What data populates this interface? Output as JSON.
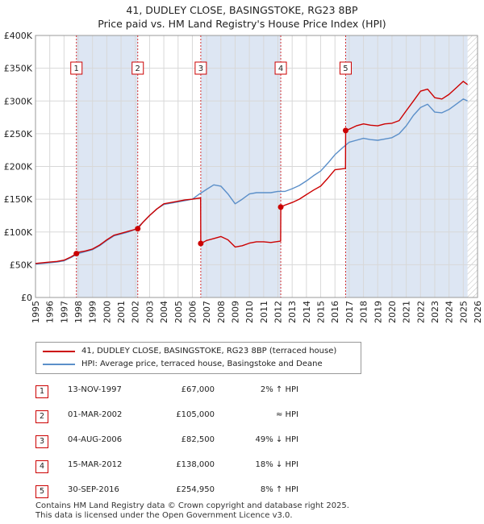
{
  "title_line1": "41, DUDLEY CLOSE, BASINGSTOKE, RG23 8BP",
  "title_line2": "Price paid vs. HM Land Registry's House Price Index (HPI)",
  "legend": {
    "property_label": "41, DUDLEY CLOSE, BASINGSTOKE, RG23 8BP (terraced house)",
    "hpi_label": "HPI: Average price, terraced house, Basingstoke and Deane"
  },
  "sales": [
    {
      "num": "1",
      "date": "13-NOV-1997",
      "price": "£67,000",
      "hpi": "2% ↑ HPI"
    },
    {
      "num": "2",
      "date": "01-MAR-2002",
      "price": "£105,000",
      "hpi": "≈ HPI"
    },
    {
      "num": "3",
      "date": "04-AUG-2006",
      "price": "£82,500",
      "hpi": "49% ↓ HPI"
    },
    {
      "num": "4",
      "date": "15-MAR-2012",
      "price": "£138,000",
      "hpi": "18% ↓ HPI"
    },
    {
      "num": "5",
      "date": "30-SEP-2016",
      "price": "£254,950",
      "hpi": "8% ↑ HPI"
    }
  ],
  "footer_line1": "Contains HM Land Registry data © Crown copyright and database right 2025.",
  "footer_line2": "This data is licensed under the Open Government Licence v3.0.",
  "colors": {
    "property": "#cc0000",
    "hpi": "#5b8fc9",
    "band": "#dde6f3",
    "grid": "#d8d8d8",
    "marker": "#cc0000"
  },
  "chart_data": {
    "type": "line",
    "title": "41, DUDLEY CLOSE, BASINGSTOKE, RG23 8BP",
    "subtitle": "Price paid vs. HM Land Registry's House Price Index (HPI)",
    "xlabel": "",
    "ylabel": "",
    "xlim": [
      1995,
      2026
    ],
    "ylim": [
      0,
      400000
    ],
    "y_ticks": [
      0,
      50000,
      100000,
      150000,
      200000,
      250000,
      300000,
      350000,
      400000
    ],
    "y_tick_labels": [
      "£0",
      "£50K",
      "£100K",
      "£150K",
      "£200K",
      "£250K",
      "£300K",
      "£350K",
      "£400K"
    ],
    "x_ticks": [
      "1995",
      "1996",
      "1997",
      "1998",
      "1999",
      "2000",
      "2001",
      "2002",
      "2003",
      "2004",
      "2005",
      "2006",
      "2007",
      "2008",
      "2009",
      "2010",
      "2011",
      "2012",
      "2013",
      "2014",
      "2015",
      "2016",
      "2017",
      "2018",
      "2019",
      "2020",
      "2021",
      "2022",
      "2023",
      "2024",
      "2025",
      "2026"
    ],
    "grid": true,
    "sale_markers": [
      {
        "label": "1",
        "x": 1997.87,
        "y": 67000
      },
      {
        "label": "2",
        "x": 2002.17,
        "y": 105000
      },
      {
        "label": "3",
        "x": 2006.59,
        "y": 82500
      },
      {
        "label": "4",
        "x": 2012.2,
        "y": 138000
      },
      {
        "label": "5",
        "x": 2016.75,
        "y": 254950
      }
    ],
    "series": [
      {
        "name": "41, DUDLEY CLOSE, BASINGSTOKE, RG23 8BP (terraced house)",
        "x": [
          1995.0,
          1995.5,
          1996.0,
          1996.5,
          1997.0,
          1997.5,
          1997.87,
          1998.0,
          1998.5,
          1999.0,
          1999.5,
          2000.0,
          2000.5,
          2001.0,
          2001.5,
          2002.0,
          2002.17,
          2002.5,
          2003.0,
          2003.5,
          2004.0,
          2004.5,
          2005.0,
          2005.5,
          2006.0,
          2006.58,
          2006.59,
          2007.0,
          2007.5,
          2008.0,
          2008.5,
          2009.0,
          2009.5,
          2010.0,
          2010.5,
          2011.0,
          2011.5,
          2012.19,
          2012.2,
          2012.5,
          2013.0,
          2013.5,
          2014.0,
          2014.5,
          2015.0,
          2015.5,
          2016.0,
          2016.74,
          2016.75,
          2017.0,
          2017.5,
          2018.0,
          2018.5,
          2019.0,
          2019.5,
          2020.0,
          2020.5,
          2021.0,
          2021.5,
          2022.0,
          2022.5,
          2023.0,
          2023.5,
          2024.0,
          2024.5,
          2025.0,
          2025.3
        ],
        "values": [
          52000,
          53000,
          54000,
          55000,
          57000,
          62000,
          67000,
          69000,
          71000,
          74000,
          80000,
          88000,
          95000,
          98000,
          101000,
          104000,
          105000,
          114000,
          125000,
          135000,
          143000,
          145000,
          147000,
          149000,
          150000,
          152000,
          82500,
          87000,
          90000,
          93000,
          88000,
          77000,
          79000,
          83000,
          85000,
          85000,
          84000,
          86000,
          138000,
          141000,
          145000,
          150000,
          157000,
          164000,
          170000,
          182000,
          195000,
          197000,
          254950,
          257000,
          262000,
          265000,
          263000,
          262000,
          265000,
          266000,
          270000,
          285000,
          300000,
          315000,
          318000,
          305000,
          303000,
          310000,
          320000,
          330000,
          325000
        ]
      },
      {
        "name": "HPI: Average price, terraced house, Basingstoke and Deane",
        "x": [
          1995.0,
          1995.5,
          1996.0,
          1996.5,
          1997.0,
          1997.5,
          1998.0,
          1998.5,
          1999.0,
          1999.5,
          2000.0,
          2000.5,
          2001.0,
          2001.5,
          2002.0,
          2002.5,
          2003.0,
          2003.5,
          2004.0,
          2004.5,
          2005.0,
          2005.5,
          2006.0,
          2006.5,
          2007.0,
          2007.5,
          2008.0,
          2008.5,
          2009.0,
          2009.5,
          2010.0,
          2010.5,
          2011.0,
          2011.5,
          2012.0,
          2012.5,
          2013.0,
          2013.5,
          2014.0,
          2014.5,
          2015.0,
          2015.5,
          2016.0,
          2016.5,
          2017.0,
          2017.5,
          2018.0,
          2018.5,
          2019.0,
          2019.5,
          2020.0,
          2020.5,
          2021.0,
          2021.5,
          2022.0,
          2022.5,
          2023.0,
          2023.5,
          2024.0,
          2024.5,
          2025.0,
          2025.3
        ],
        "values": [
          51000,
          52000,
          53000,
          54000,
          56000,
          61000,
          67000,
          70000,
          73000,
          79000,
          87000,
          94000,
          97000,
          100000,
          104000,
          114000,
          125000,
          135000,
          142000,
          144000,
          146000,
          148000,
          150000,
          158000,
          165000,
          172000,
          170000,
          158000,
          143000,
          150000,
          158000,
          160000,
          160000,
          160000,
          162000,
          162000,
          166000,
          171000,
          178000,
          186000,
          193000,
          205000,
          218000,
          228000,
          237000,
          240000,
          243000,
          241000,
          240000,
          242000,
          244000,
          250000,
          262000,
          278000,
          290000,
          295000,
          283000,
          282000,
          287000,
          295000,
          303000,
          300000
        ]
      }
    ]
  }
}
